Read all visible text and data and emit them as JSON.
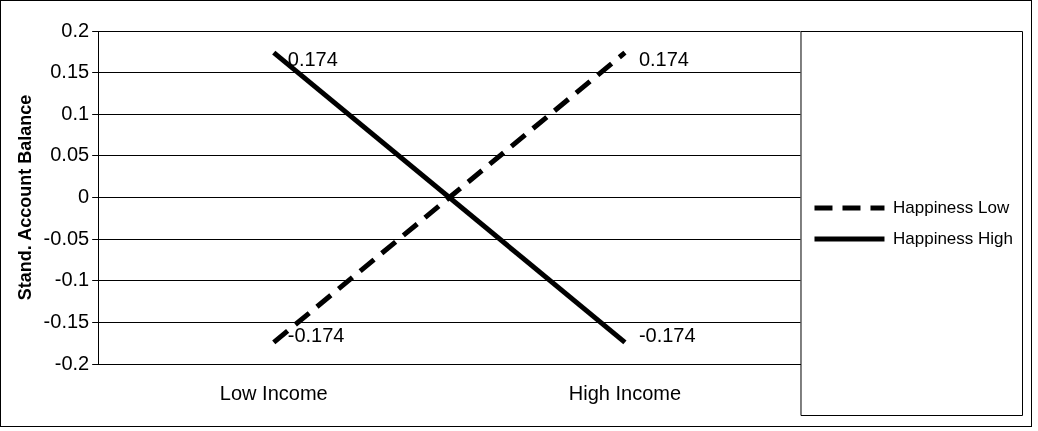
{
  "chart_data": {
    "type": "line",
    "ylabel": "Stand. Account Balance",
    "categories": [
      "Low Income",
      "High Income"
    ],
    "series": [
      {
        "name": "Happiness Low",
        "color": "#000000",
        "values": [
          -0.174,
          0.174
        ],
        "line_style": "dashed"
      },
      {
        "name": "Happiness High",
        "color": "#000000",
        "values": [
          0.174,
          -0.174
        ],
        "line_style": "solid"
      }
    ],
    "ylim": [
      -0.2,
      0.2
    ],
    "yticks": [
      -0.2,
      -0.15,
      -0.1,
      -0.05,
      0,
      0.05,
      0.1,
      0.15,
      0.2
    ],
    "grid": "y",
    "legend": "right",
    "marker": "none",
    "data_labels": true
  }
}
